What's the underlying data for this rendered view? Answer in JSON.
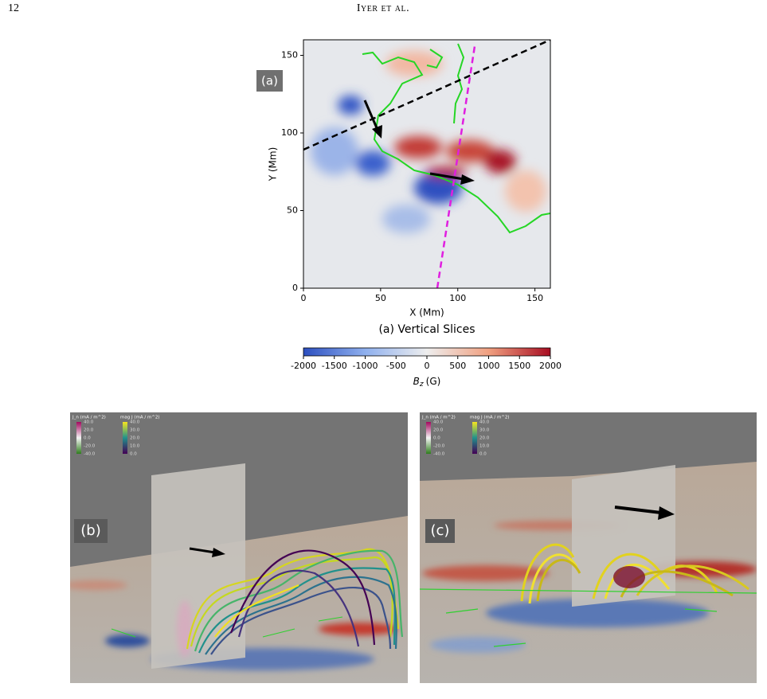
{
  "header": {
    "page_number": "12",
    "running_head": "Iyer et al."
  },
  "figure": {
    "panel_a": {
      "label": "(a)",
      "caption": "(a) Vertical Slices",
      "xlabel": "X (Mm)",
      "ylabel": "Y (Mm)",
      "xlim": [
        0,
        160
      ],
      "ylim": [
        0,
        160
      ],
      "xticks": [
        0,
        50,
        100,
        150
      ],
      "yticks": [
        0,
        50,
        100,
        150
      ],
      "colorbar": {
        "symbol": "B",
        "subscript": "z",
        "unit": "(G)",
        "lim": [
          -2000,
          2000
        ],
        "ticks": [
          -2000,
          -1500,
          -1000,
          -500,
          0,
          500,
          1000,
          1500,
          2000
        ]
      }
    },
    "panel_b": {
      "label": "(b)",
      "legends": [
        {
          "title": "J_n (mA / m^2)",
          "ticks": [
            "40.0",
            "20.0",
            "0.0",
            "-20.0",
            "-40.0"
          ]
        },
        {
          "title": "mag J (mA / m^2)",
          "ticks": [
            "40.0",
            "30.0",
            "20.0",
            "10.0",
            "0.0"
          ]
        }
      ]
    },
    "panel_c": {
      "label": "(c)",
      "legends": [
        {
          "title": "J_n (mA / m^2)",
          "ticks": [
            "40.0",
            "20.0",
            "0.0",
            "-20.0",
            "-40.0"
          ]
        },
        {
          "title": "mag J (mA / m^2)",
          "ticks": [
            "40.0",
            "30.0",
            "20.0",
            "10.0",
            "0.0"
          ]
        }
      ]
    }
  }
}
